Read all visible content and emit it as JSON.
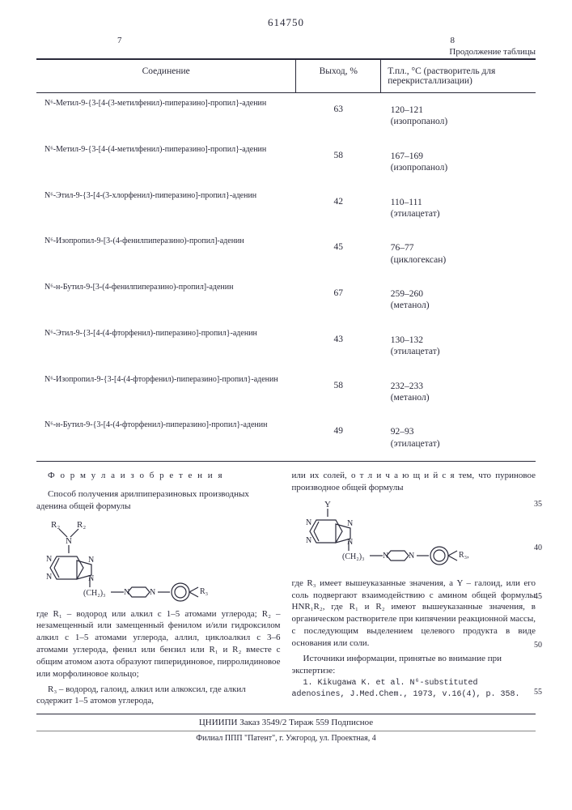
{
  "patent_number": "614750",
  "page_left": "7",
  "page_right": "8",
  "table_continuation": "Продолжение таблицы",
  "columns": {
    "c1": "Соединение",
    "c2": "Выход, %",
    "c3": "Т.пл., °С (растворитель для перекристаллизации)"
  },
  "rows": [
    {
      "compound": "N⁶-Метил-9-{3-[4-(3-метилфенил)-пиперазино]-пропил}-аденин",
      "yield": "63",
      "mp": "120–121",
      "solvent": "(изопропанол)"
    },
    {
      "compound": "N⁶-Метил-9-{3-[4-(4-метилфенил)-пиперазино]-пропил}-аденин",
      "yield": "58",
      "mp": "167–169",
      "solvent": "(изопропанол)"
    },
    {
      "compound": "N⁶-Этил-9-{3-[4-(3-хлорфенил)-пиперазино]-пропил}-аденин",
      "yield": "42",
      "mp": "110–111",
      "solvent": "(этилацетат)"
    },
    {
      "compound": "N⁶-Изопропил-9-[3-(4-фенилпиперазино)-пропил]-аденин",
      "yield": "45",
      "mp": "76–77",
      "solvent": "(циклогексан)"
    },
    {
      "compound": "N⁶-н-Бутил-9-[3-(4-фенилпиперазино)-пропил]-аденин",
      "yield": "67",
      "mp": "259–260",
      "solvent": "(метанол)"
    },
    {
      "compound": "N⁶-Этил-9-{3-[4-(4-фторфенил)-пиперазино]-пропил}-аденин",
      "yield": "43",
      "mp": "130–132",
      "solvent": "(этилацетат)"
    },
    {
      "compound": "N⁶-Изопропил-9-{3-[4-(4-фторфенил)-пиперазино]-пропил}-аденин",
      "yield": "58",
      "mp": "232–233",
      "solvent": "(метанол)"
    },
    {
      "compound": "N⁶-н-Бутил-9-{3-[4-(4-фторфенил)-пиперазино]-пропил}-аденин",
      "yield": "49",
      "mp": "92–93",
      "solvent": "(этилацетат)"
    }
  ],
  "left_col": {
    "title": "Ф о р м у л а   и з о б р е т е н и я",
    "p1": "Способ получения арилпиперазиновых производных аденина общей формулы",
    "p2": "где R₁ – водород или алкил с 1–5 атомами углерода; R₂ – незамещенный или замещенный фенилом и/или гидроксилом алкил с 1–5 атомами углерода, аллил, циклоалкил с 3–6 атомами углерода, фенил или бензил или R₁ и R₂ вместе с общим атомом азота образуют пиперидиновое, пирролидиновое или морфолиновое кольцо;",
    "p3": "R₃ – водород, галоид, алкил или алкоксил, где алкил содержит 1–5 атомов углерода,"
  },
  "right_col": {
    "p1": "или их солей, о т л и ч а ю щ и й с я тем, что пуриновое производное общей формулы",
    "p2": "где R₃ имеет вышеуказанные значения, а Y – галоид, или его соль подвергают взаимодействию с амином общей формулы HNR₁R₂, где R₁ и R₂ имеют вышеуказанные значения, в органическом растворителе при кипячении реакционной массы, с последующим выделением целевого продукта в виде основания или соли.",
    "p3": "Источники информации, принятые во внимание при экспертизе:",
    "ref": "1. Kikugawa K. et al. N⁶-substituted adenosines, J.Med.Chem., 1973, v.16(4), p. 358."
  },
  "line_numbers": {
    "n35": "35",
    "n40": "40",
    "n45": "45",
    "n50": "50",
    "n55": "55"
  },
  "footer": "ЦНИИПИ   Заказ 3549/2   Тираж 559   Подписное",
  "footer2": "Филиал ППП \"Патент\", г. Ужгород, ул. Проектная, 4",
  "colors": {
    "text": "#2a2a3a",
    "bg": "#ffffff",
    "rule": "#2a2a3a"
  }
}
